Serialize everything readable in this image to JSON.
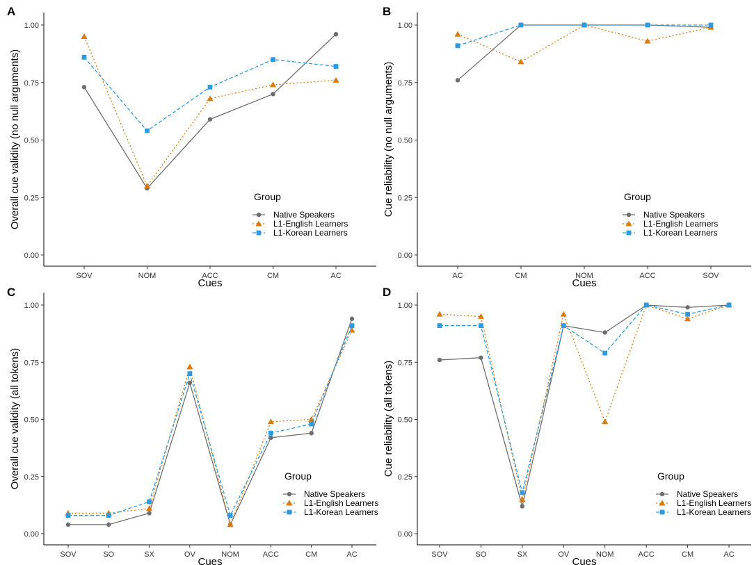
{
  "colors": {
    "native": "#6e6e6e",
    "english": "#d97c0f",
    "korean": "#2e9be0"
  },
  "chart_data": [
    {
      "panel": "A",
      "type": "line",
      "categories": [
        "SOV",
        "NOM",
        "ACC",
        "CM",
        "AC"
      ],
      "xlabel": "Cues",
      "ylabel": "Overall cue validity (no null arguments)",
      "ylim": [
        0,
        1
      ],
      "yticks": [
        "0.00",
        "0.25",
        "0.50",
        "0.75",
        "1.00"
      ],
      "legend_title": "Group",
      "legend_position": "right-lower",
      "series": [
        {
          "name": "Native Speakers",
          "key": "native",
          "marker": "circle",
          "dash": "solid",
          "values": [
            0.73,
            0.29,
            0.59,
            0.7,
            0.96
          ]
        },
        {
          "name": "L1-English Learners",
          "key": "english",
          "marker": "triangle",
          "dash": "dotted",
          "values": [
            0.95,
            0.3,
            0.68,
            0.74,
            0.76
          ]
        },
        {
          "name": "L1-Korean Learners",
          "key": "korean",
          "marker": "square",
          "dash": "dashed",
          "values": [
            0.86,
            0.54,
            0.73,
            0.85,
            0.82
          ]
        }
      ]
    },
    {
      "panel": "B",
      "type": "line",
      "categories": [
        "AC",
        "CM",
        "NOM",
        "ACC",
        "SOV"
      ],
      "xlabel": "Cues",
      "ylabel": "Cue reliability (no null arguments)",
      "ylim": [
        0,
        1
      ],
      "yticks": [
        "0.00",
        "0.25",
        "0.50",
        "0.75",
        "1.00"
      ],
      "legend_title": "Group",
      "legend_position": "right-lower",
      "series": [
        {
          "name": "Native Speakers",
          "key": "native",
          "marker": "circle",
          "dash": "solid",
          "values": [
            0.76,
            1.0,
            1.0,
            1.0,
            0.99
          ]
        },
        {
          "name": "L1-English Learners",
          "key": "english",
          "marker": "triangle",
          "dash": "dotted",
          "values": [
            0.96,
            0.84,
            1.0,
            0.93,
            0.99
          ]
        },
        {
          "name": "L1-Korean Learners",
          "key": "korean",
          "marker": "square",
          "dash": "dashed",
          "values": [
            0.91,
            1.0,
            1.0,
            1.0,
            1.0
          ]
        }
      ]
    },
    {
      "panel": "C",
      "type": "line",
      "categories": [
        "SOV",
        "SO",
        "SX",
        "OV",
        "NOM",
        "ACC",
        "CM",
        "AC"
      ],
      "xlabel": "Cues",
      "ylabel": "Overall cue validity (all tokens)",
      "ylim": [
        0,
        1
      ],
      "yticks": [
        "0.00",
        "0.25",
        "0.50",
        "0.75",
        "1.00"
      ],
      "legend_title": "Group",
      "legend_position": "right-lower",
      "series": [
        {
          "name": "Native Speakers",
          "key": "native",
          "marker": "circle",
          "dash": "solid",
          "values": [
            0.04,
            0.04,
            0.09,
            0.66,
            0.04,
            0.42,
            0.44,
            0.94
          ]
        },
        {
          "name": "L1-English Learners",
          "key": "english",
          "marker": "triangle",
          "dash": "dotted",
          "values": [
            0.09,
            0.09,
            0.11,
            0.73,
            0.04,
            0.49,
            0.5,
            0.89
          ]
        },
        {
          "name": "L1-Korean Learners",
          "key": "korean",
          "marker": "square",
          "dash": "dashed",
          "values": [
            0.08,
            0.08,
            0.14,
            0.7,
            0.08,
            0.44,
            0.48,
            0.91
          ]
        }
      ]
    },
    {
      "panel": "D",
      "type": "line",
      "categories": [
        "SOV",
        "SO",
        "SX",
        "OV",
        "NOM",
        "ACC",
        "CM",
        "AC"
      ],
      "xlabel": "Cues",
      "ylabel": "Cue reliability (all tokens)",
      "ylim": [
        0,
        1
      ],
      "yticks": [
        "0.00",
        "0.25",
        "0.50",
        "0.75",
        "1.00"
      ],
      "legend_title": "Group",
      "legend_position": "right-lower",
      "series": [
        {
          "name": "Native Speakers",
          "key": "native",
          "marker": "circle",
          "dash": "solid",
          "values": [
            0.76,
            0.77,
            0.12,
            0.91,
            0.88,
            1.0,
            0.99,
            1.0
          ]
        },
        {
          "name": "L1-English Learners",
          "key": "english",
          "marker": "triangle",
          "dash": "dotted",
          "values": [
            0.96,
            0.95,
            0.15,
            0.96,
            0.49,
            1.0,
            0.94,
            1.0
          ]
        },
        {
          "name": "L1-Korean Learners",
          "key": "korean",
          "marker": "square",
          "dash": "dashed",
          "values": [
            0.91,
            0.91,
            0.18,
            0.91,
            0.79,
            1.0,
            0.96,
            1.0
          ]
        }
      ]
    }
  ]
}
